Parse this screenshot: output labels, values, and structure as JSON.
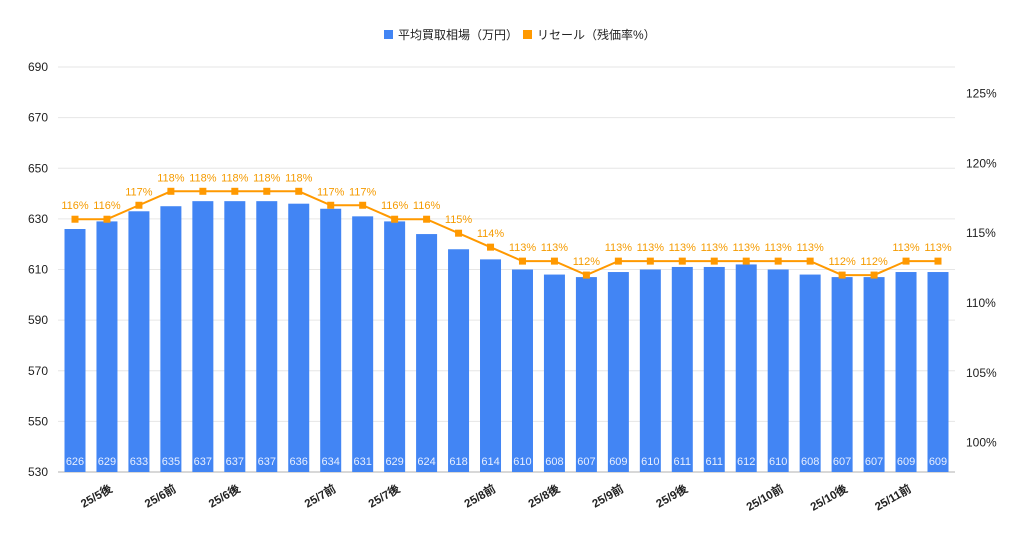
{
  "chart_data": {
    "type": "bar+line",
    "title": "",
    "legend_position": "top",
    "grid": true,
    "categories": [
      "",
      "25/5後",
      "",
      "25/6前",
      "",
      "25/6後",
      "",
      "",
      "25/7前",
      "",
      "25/7後",
      "",
      "",
      "25/8前",
      "",
      "25/8後",
      "",
      "25/9前",
      "",
      "25/9後",
      "",
      "",
      "25/10前",
      "",
      "25/10後",
      "",
      "25/11前",
      ""
    ],
    "left_axis": {
      "ylim": [
        530,
        690
      ],
      "ticks": [
        "530",
        "550",
        "570",
        "590",
        "610",
        "630",
        "650",
        "670",
        "690"
      ]
    },
    "right_axis": {
      "ylim": [
        97.9,
        126.9
      ],
      "ticks": [
        "100%",
        "105%",
        "110%",
        "115%",
        "120%",
        "125%"
      ]
    },
    "series": [
      {
        "name": "平均買取相場（万円）",
        "type": "bar",
        "axis": "left",
        "color": "#4285f4",
        "values": [
          626,
          629,
          633,
          635,
          637,
          637,
          637,
          636,
          634,
          631,
          629,
          624,
          618,
          614,
          610,
          608,
          607,
          609,
          610,
          611,
          611,
          612,
          610,
          608,
          607,
          607,
          609,
          609
        ]
      },
      {
        "name": "リセール（残価率%）",
        "type": "line",
        "axis": "right",
        "color": "#ff9900",
        "values": [
          116,
          116,
          117,
          118,
          118,
          118,
          118,
          118,
          117,
          117,
          116,
          116,
          115,
          114,
          113,
          113,
          112,
          113,
          113,
          113,
          113,
          113,
          113,
          113,
          112,
          112,
          113,
          113
        ]
      }
    ]
  }
}
